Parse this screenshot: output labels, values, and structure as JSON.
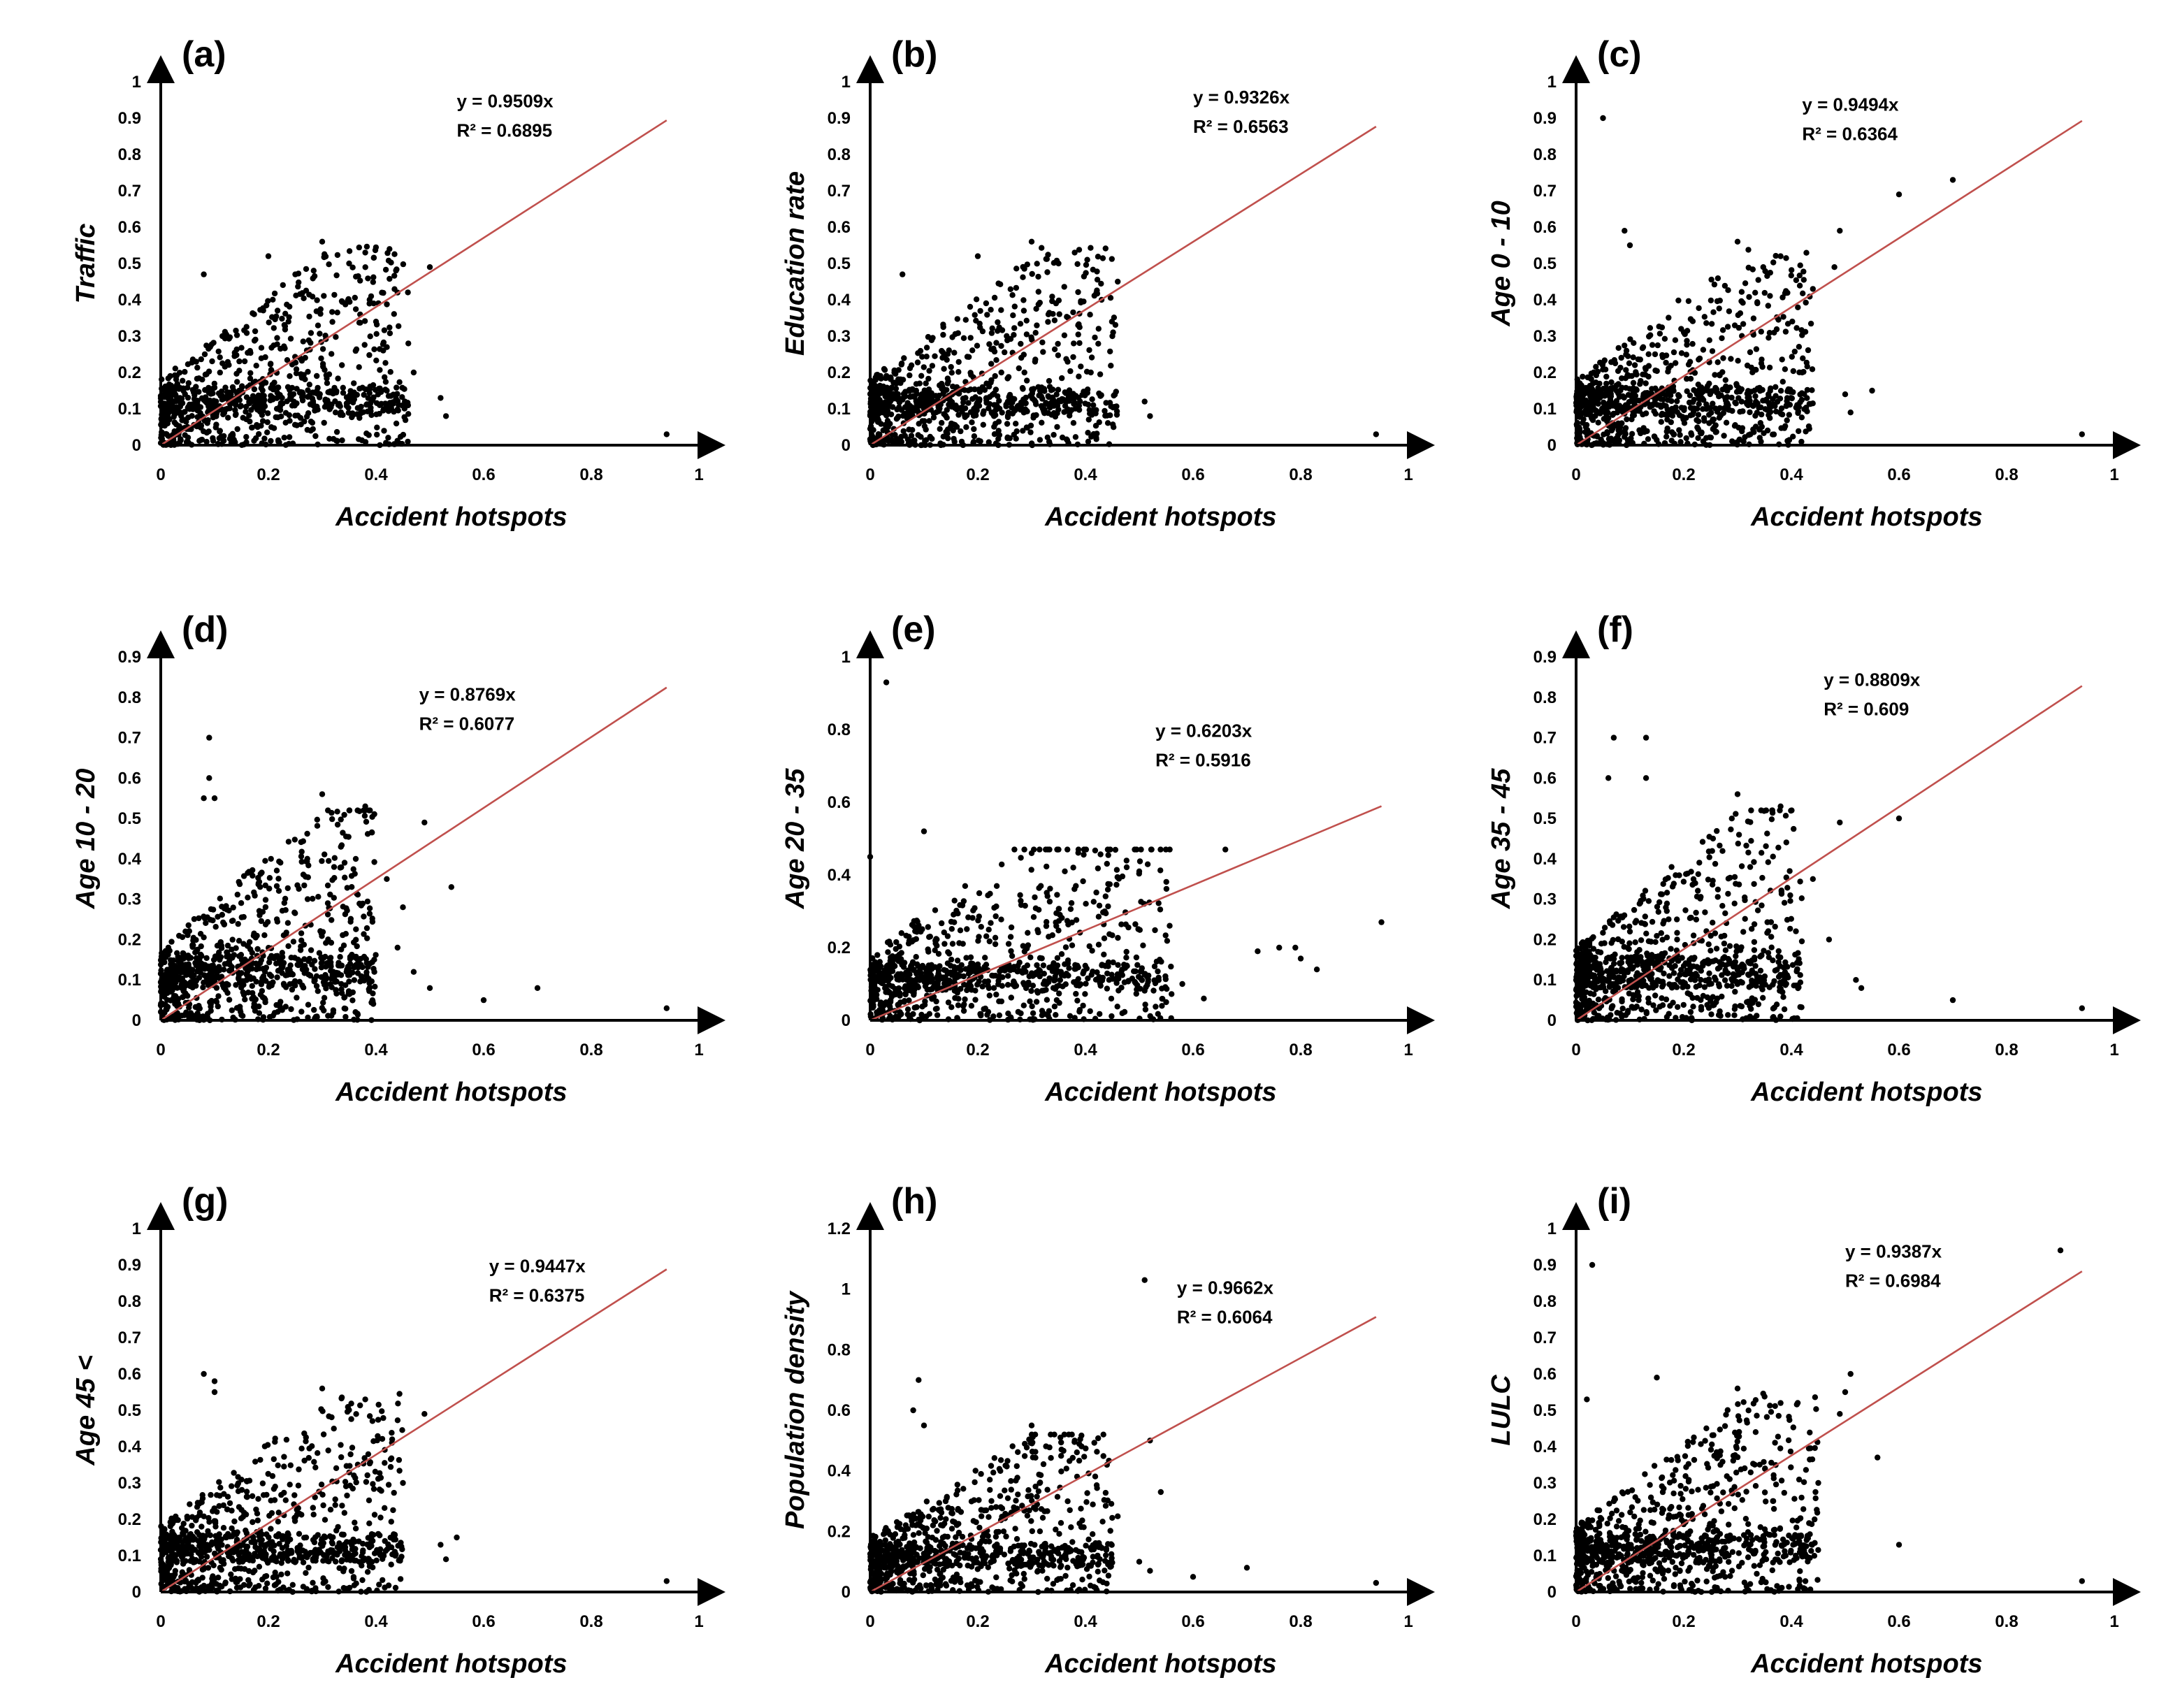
{
  "figure": {
    "point_sampling_note": "Dense point clouds are summarized as representative sample points read from the image."
  },
  "chart_data": [
    {
      "type": "scatter",
      "panel": "(a)",
      "xlabel": "Accident hotspots",
      "ylabel": "Traffic",
      "xlim": [
        0,
        1
      ],
      "ylim": [
        0,
        1
      ],
      "xticks": [
        0,
        0.2,
        0.4,
        0.6,
        0.8,
        1
      ],
      "yticks": [
        0,
        0.1,
        0.2,
        0.3,
        0.4,
        0.5,
        0.6,
        0.7,
        0.8,
        0.9,
        1
      ],
      "tick_labels_x": [
        "0",
        "0.2",
        "0.4",
        "0.6",
        "0.8",
        "1"
      ],
      "tick_labels_y": [
        "0",
        "0.1",
        "0.2",
        "0.3",
        "0.4",
        "0.5",
        "0.6",
        "0.7",
        "0.8",
        "0.9",
        "1"
      ],
      "trendline": {
        "slope": 0.9509,
        "x_end": 0.94,
        "color": "#c0504d"
      },
      "equation": "y = 0.9509x",
      "r_squared": "R² = 0.6895",
      "cloud": {
        "seed": 11,
        "n": 900,
        "xmax": 0.46,
        "ymax": 0.55
      },
      "points": [
        [
          0.08,
          0.47
        ],
        [
          0.2,
          0.52
        ],
        [
          0.3,
          0.56
        ],
        [
          0.38,
          0.53
        ],
        [
          0.5,
          0.49
        ],
        [
          0.52,
          0.13
        ],
        [
          0.53,
          0.08
        ],
        [
          0.94,
          0.03
        ],
        [
          0.46,
          0.28
        ],
        [
          0.44,
          0.42
        ],
        [
          0.4,
          0.34
        ],
        [
          0.42,
          0.15
        ],
        [
          0.35,
          0.5
        ],
        [
          0.25,
          0.47
        ],
        [
          0.47,
          0.2
        ],
        [
          0.1,
          0.1
        ],
        [
          0.05,
          0.05
        ]
      ]
    },
    {
      "type": "scatter",
      "panel": "(b)",
      "xlabel": "Accident hotspots",
      "ylabel": "Education rate",
      "xlim": [
        0,
        1
      ],
      "ylim": [
        0,
        1
      ],
      "xticks": [
        0,
        0.2,
        0.4,
        0.6,
        0.8,
        1
      ],
      "yticks": [
        0,
        0.1,
        0.2,
        0.3,
        0.4,
        0.5,
        0.6,
        0.7,
        0.8,
        0.9,
        1
      ],
      "tick_labels_x": [
        "0",
        "0.2",
        "0.4",
        "0.6",
        "0.8",
        "1"
      ],
      "tick_labels_y": [
        "0",
        "0.1",
        "0.2",
        "0.3",
        "0.4",
        "0.5",
        "0.6",
        "0.7",
        "0.8",
        "0.9",
        "1"
      ],
      "trendline": {
        "slope": 0.9326,
        "x_end": 0.94,
        "color": "#c0504d"
      },
      "equation": "y = 0.9326x",
      "r_squared": "R² = 0.6563",
      "cloud": {
        "seed": 23,
        "n": 900,
        "xmax": 0.46,
        "ymax": 0.55
      },
      "points": [
        [
          0.06,
          0.47
        ],
        [
          0.2,
          0.52
        ],
        [
          0.3,
          0.56
        ],
        [
          0.38,
          0.53
        ],
        [
          0.46,
          0.45
        ],
        [
          0.51,
          0.12
        ],
        [
          0.52,
          0.08
        ],
        [
          0.94,
          0.03
        ],
        [
          0.45,
          0.3
        ],
        [
          0.43,
          0.4
        ],
        [
          0.41,
          0.2
        ],
        [
          0.35,
          0.5
        ],
        [
          0.1,
          0.1
        ]
      ]
    },
    {
      "type": "scatter",
      "panel": "(c)",
      "xlabel": "Accident hotspots",
      "ylabel": "Age 0 - 10",
      "xlim": [
        0,
        1
      ],
      "ylim": [
        0,
        1
      ],
      "xticks": [
        0,
        0.2,
        0.4,
        0.6,
        0.8,
        1
      ],
      "yticks": [
        0,
        0.1,
        0.2,
        0.3,
        0.4,
        0.5,
        0.6,
        0.7,
        0.8,
        0.9,
        1
      ],
      "tick_labels_x": [
        "0",
        "0.2",
        "0.4",
        "0.6",
        "0.8",
        "1"
      ],
      "tick_labels_y": [
        "0",
        "0.1",
        "0.2",
        "0.3",
        "0.4",
        "0.5",
        "0.6",
        "0.7",
        "0.8",
        "0.9",
        "1"
      ],
      "trendline": {
        "slope": 0.9494,
        "x_end": 0.94,
        "color": "#c0504d"
      },
      "equation": "y = 0.9494x",
      "r_squared": "R² = 0.6364",
      "cloud": {
        "seed": 37,
        "n": 900,
        "xmax": 0.44,
        "ymax": 0.55
      },
      "points": [
        [
          0.05,
          0.9
        ],
        [
          0.6,
          0.69
        ],
        [
          0.7,
          0.73
        ],
        [
          0.49,
          0.59
        ],
        [
          0.48,
          0.49
        ],
        [
          0.5,
          0.14
        ],
        [
          0.51,
          0.09
        ],
        [
          0.55,
          0.15
        ],
        [
          0.94,
          0.03
        ],
        [
          0.09,
          0.59
        ],
        [
          0.1,
          0.55
        ],
        [
          0.3,
          0.56
        ],
        [
          0.38,
          0.52
        ],
        [
          0.44,
          0.43
        ],
        [
          0.42,
          0.2
        ]
      ]
    },
    {
      "type": "scatter",
      "panel": "(d)",
      "xlabel": "Accident hotspots",
      "ylabel": "Age 10 - 20",
      "xlim": [
        0,
        1
      ],
      "ylim": [
        0,
        0.9
      ],
      "xticks": [
        0,
        0.2,
        0.4,
        0.6,
        0.8,
        1
      ],
      "yticks": [
        0,
        0.1,
        0.2,
        0.3,
        0.4,
        0.5,
        0.6,
        0.7,
        0.8,
        0.9
      ],
      "tick_labels_x": [
        "0",
        "0.2",
        "0.4",
        "0.6",
        "0.8",
        "1"
      ],
      "tick_labels_y": [
        "0",
        "0.1",
        "0.2",
        "0.3",
        "0.4",
        "0.5",
        "0.6",
        "0.7",
        "0.8",
        "0.9"
      ],
      "trendline": {
        "slope": 0.8769,
        "x_end": 0.94,
        "color": "#c0504d"
      },
      "equation": "y = 0.8769x",
      "r_squared": "R² = 0.6077",
      "cloud": {
        "seed": 41,
        "n": 900,
        "xmax": 0.4,
        "ymax": 0.52
      },
      "points": [
        [
          0.09,
          0.7
        ],
        [
          0.09,
          0.6
        ],
        [
          0.1,
          0.55
        ],
        [
          0.08,
          0.55
        ],
        [
          0.49,
          0.49
        ],
        [
          0.54,
          0.33
        ],
        [
          0.6,
          0.05
        ],
        [
          0.7,
          0.08
        ],
        [
          0.94,
          0.03
        ],
        [
          0.45,
          0.28
        ],
        [
          0.47,
          0.12
        ],
        [
          0.5,
          0.08
        ],
        [
          0.38,
          0.53
        ],
        [
          0.3,
          0.56
        ],
        [
          0.42,
          0.35
        ],
        [
          0.44,
          0.18
        ]
      ]
    },
    {
      "type": "scatter",
      "panel": "(e)",
      "xlabel": "Accident hotspots",
      "ylabel": "Age 20 - 35",
      "xlim": [
        0,
        1
      ],
      "ylim": [
        0,
        1
      ],
      "xticks": [
        0,
        0.2,
        0.4,
        0.6,
        0.8,
        1
      ],
      "yticks": [
        0,
        0.2,
        0.4,
        0.6,
        0.8,
        1
      ],
      "tick_labels_x": [
        "0",
        "0.2",
        "0.4",
        "0.6",
        "0.8",
        "1"
      ],
      "tick_labels_y": [
        "0",
        "0.2",
        "0.4",
        "0.6",
        "0.8",
        "1"
      ],
      "trendline": {
        "slope": 0.6203,
        "x_end": 0.95,
        "color": "#c0504d"
      },
      "equation": "y = 0.6203x",
      "r_squared": "R² = 0.5916",
      "cloud": {
        "seed": 53,
        "n": 900,
        "xmax": 0.56,
        "ymax": 0.47
      },
      "points": [
        [
          0.03,
          0.93
        ],
        [
          0.66,
          0.47
        ],
        [
          0.72,
          0.19
        ],
        [
          0.76,
          0.2
        ],
        [
          0.79,
          0.2
        ],
        [
          0.8,
          0.17
        ],
        [
          0.83,
          0.14
        ],
        [
          0.95,
          0.27
        ],
        [
          0.58,
          0.1
        ],
        [
          0.62,
          0.06
        ],
        [
          0.55,
          0.05
        ],
        [
          0.1,
          0.52
        ],
        [
          0.3,
          0.46
        ],
        [
          0.5,
          0.41
        ],
        [
          0.0,
          0.45
        ]
      ]
    },
    {
      "type": "scatter",
      "panel": "(f)",
      "xlabel": "Accident hotspots",
      "ylabel": "Age 35 - 45",
      "xlim": [
        0,
        1
      ],
      "ylim": [
        0,
        0.9
      ],
      "xticks": [
        0,
        0.2,
        0.4,
        0.6,
        0.8,
        1
      ],
      "yticks": [
        0,
        0.1,
        0.2,
        0.3,
        0.4,
        0.5,
        0.6,
        0.7,
        0.8,
        0.9
      ],
      "tick_labels_x": [
        "0",
        "0.2",
        "0.4",
        "0.6",
        "0.8",
        "1"
      ],
      "tick_labels_y": [
        "0",
        "0.1",
        "0.2",
        "0.3",
        "0.4",
        "0.5",
        "0.6",
        "0.7",
        "0.8",
        "0.9"
      ],
      "trendline": {
        "slope": 0.8809,
        "x_end": 0.94,
        "color": "#c0504d"
      },
      "equation": "y = 0.8809x",
      "r_squared": "R² = 0.609",
      "cloud": {
        "seed": 67,
        "n": 900,
        "xmax": 0.42,
        "ymax": 0.52
      },
      "points": [
        [
          0.07,
          0.7
        ],
        [
          0.13,
          0.7
        ],
        [
          0.06,
          0.6
        ],
        [
          0.13,
          0.6
        ],
        [
          0.6,
          0.5
        ],
        [
          0.7,
          0.05
        ],
        [
          0.94,
          0.03
        ],
        [
          0.49,
          0.49
        ],
        [
          0.52,
          0.1
        ],
        [
          0.53,
          0.08
        ],
        [
          0.3,
          0.56
        ],
        [
          0.38,
          0.53
        ],
        [
          0.44,
          0.35
        ],
        [
          0.47,
          0.2
        ]
      ]
    },
    {
      "type": "scatter",
      "panel": "(g)",
      "xlabel": "Accident hotspots",
      "ylabel": "Age 45 <",
      "xlim": [
        0,
        1
      ],
      "ylim": [
        0,
        1
      ],
      "xticks": [
        0,
        0.2,
        0.4,
        0.6,
        0.8,
        1
      ],
      "yticks": [
        0,
        0.1,
        0.2,
        0.3,
        0.4,
        0.5,
        0.6,
        0.7,
        0.8,
        0.9,
        1
      ],
      "tick_labels_x": [
        "0",
        "0.2",
        "0.4",
        "0.6",
        "0.8",
        "1"
      ],
      "tick_labels_y": [
        "0",
        "0.1",
        "0.2",
        "0.3",
        "0.4",
        "0.5",
        "0.6",
        "0.7",
        "0.8",
        "0.9",
        "1"
      ],
      "trendline": {
        "slope": 0.9447,
        "x_end": 0.94,
        "color": "#c0504d"
      },
      "equation": "y = 0.9447x",
      "r_squared": "R² = 0.6375",
      "cloud": {
        "seed": 79,
        "n": 900,
        "xmax": 0.45,
        "ymax": 0.55
      },
      "points": [
        [
          0.08,
          0.6
        ],
        [
          0.1,
          0.58
        ],
        [
          0.1,
          0.55
        ],
        [
          0.49,
          0.49
        ],
        [
          0.52,
          0.13
        ],
        [
          0.53,
          0.09
        ],
        [
          0.55,
          0.15
        ],
        [
          0.94,
          0.03
        ],
        [
          0.3,
          0.56
        ],
        [
          0.38,
          0.53
        ],
        [
          0.45,
          0.3
        ],
        [
          0.43,
          0.42
        ]
      ]
    },
    {
      "type": "scatter",
      "panel": "(h)",
      "xlabel": "Accident hotspots",
      "ylabel": "Population density",
      "xlim": [
        0,
        1
      ],
      "ylim": [
        0,
        1.2
      ],
      "xticks": [
        0,
        0.2,
        0.4,
        0.6,
        0.8,
        1
      ],
      "yticks": [
        0,
        0.2,
        0.4,
        0.6,
        0.8,
        1,
        1.2
      ],
      "tick_labels_x": [
        "0",
        "0.2",
        "0.4",
        "0.6",
        "0.8",
        "1"
      ],
      "tick_labels_y": [
        "0",
        "0.2",
        "0.4",
        "0.6",
        "0.8",
        "1",
        "1.2"
      ],
      "trendline": {
        "slope": 0.9662,
        "x_end": 0.94,
        "color": "#c0504d"
      },
      "equation": "y = 0.9662x",
      "r_squared": "R² = 0.6064",
      "cloud": {
        "seed": 97,
        "n": 900,
        "xmax": 0.45,
        "ymax": 0.52
      },
      "points": [
        [
          0.51,
          1.03
        ],
        [
          0.09,
          0.7
        ],
        [
          0.08,
          0.6
        ],
        [
          0.1,
          0.55
        ],
        [
          0.52,
          0.5
        ],
        [
          0.54,
          0.33
        ],
        [
          0.6,
          0.05
        ],
        [
          0.7,
          0.08
        ],
        [
          0.94,
          0.03
        ],
        [
          0.5,
          0.1
        ],
        [
          0.52,
          0.07
        ],
        [
          0.3,
          0.55
        ],
        [
          0.38,
          0.5
        ],
        [
          0.44,
          0.42
        ],
        [
          0.46,
          0.25
        ]
      ]
    },
    {
      "type": "scatter",
      "panel": "(i)",
      "xlabel": "Accident hotspots",
      "ylabel": "LULC",
      "xlim": [
        0,
        1
      ],
      "ylim": [
        0,
        1
      ],
      "xticks": [
        0,
        0.2,
        0.4,
        0.6,
        0.8,
        1
      ],
      "yticks": [
        0,
        0.1,
        0.2,
        0.3,
        0.4,
        0.5,
        0.6,
        0.7,
        0.8,
        0.9,
        1
      ],
      "tick_labels_x": [
        "0",
        "0.2",
        "0.4",
        "0.6",
        "0.8",
        "1"
      ],
      "tick_labels_y": [
        "0",
        "0.1",
        "0.2",
        "0.3",
        "0.4",
        "0.5",
        "0.6",
        "0.7",
        "0.8",
        "0.9",
        "1"
      ],
      "trendline": {
        "slope": 0.9387,
        "x_end": 0.94,
        "color": "#c0504d"
      },
      "equation": "y = 0.9387x",
      "r_squared": "R² = 0.6984",
      "cloud": {
        "seed": 109,
        "n": 900,
        "xmax": 0.45,
        "ymax": 0.56
      },
      "points": [
        [
          0.03,
          0.9
        ],
        [
          0.9,
          0.94
        ],
        [
          0.51,
          0.6
        ],
        [
          0.5,
          0.55
        ],
        [
          0.49,
          0.49
        ],
        [
          0.56,
          0.37
        ],
        [
          0.6,
          0.13
        ],
        [
          0.94,
          0.03
        ],
        [
          0.02,
          0.53
        ],
        [
          0.15,
          0.59
        ],
        [
          0.3,
          0.56
        ],
        [
          0.38,
          0.52
        ],
        [
          0.45,
          0.3
        ]
      ]
    }
  ]
}
